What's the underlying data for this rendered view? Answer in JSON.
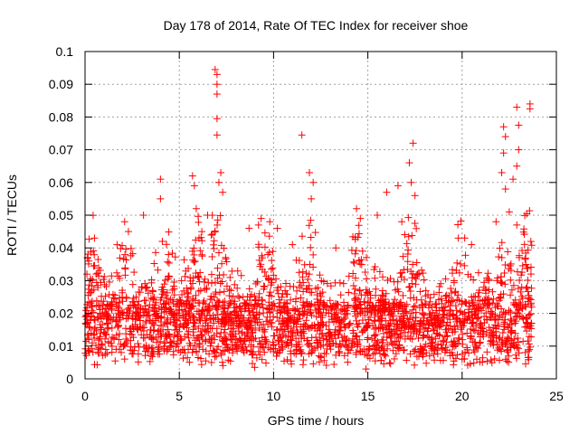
{
  "chart_data": {
    "type": "scatter",
    "title": "Day 178 of 2014, Rate Of TEC Index for receiver shoe",
    "xlabel": "GPS time / hours",
    "ylabel": "ROTI / TECUs",
    "xlim": [
      0,
      25
    ],
    "ylim": [
      0,
      0.1
    ],
    "xticks": [
      "0",
      "5",
      "10",
      "15",
      "20",
      "25"
    ],
    "yticks": [
      "0",
      "0.01",
      "0.02",
      "0.03",
      "0.04",
      "0.05",
      "0.06",
      "0.07",
      "0.08",
      "0.09",
      "0.1"
    ],
    "grid": true,
    "marker": "plus",
    "series": [
      {
        "name": "ROTI",
        "color": "#ff0000",
        "points": [
          [
            0.1,
            0.032
          ],
          [
            0.2,
            0.036
          ],
          [
            0.5,
            0.043
          ],
          [
            1.7,
            0.041
          ],
          [
            2.1,
            0.048
          ],
          [
            2.3,
            0.045
          ],
          [
            3.1,
            0.05
          ],
          [
            4.0,
            0.061
          ],
          [
            4.0,
            0.055
          ],
          [
            4.1,
            0.042
          ],
          [
            5.7,
            0.062
          ],
          [
            5.8,
            0.059
          ],
          [
            5.9,
            0.052
          ],
          [
            6.5,
            0.05
          ],
          [
            6.9,
            0.0945
          ],
          [
            7.0,
            0.093
          ],
          [
            7.0,
            0.09
          ],
          [
            7.0,
            0.087
          ],
          [
            7.0,
            0.0795
          ],
          [
            7.0,
            0.0745
          ],
          [
            7.1,
            0.06
          ],
          [
            7.2,
            0.063
          ],
          [
            7.3,
            0.057
          ],
          [
            8.7,
            0.046
          ],
          [
            9.2,
            0.047
          ],
          [
            9.8,
            0.048
          ],
          [
            10.2,
            0.046
          ],
          [
            11.0,
            0.041
          ],
          [
            11.5,
            0.0745
          ],
          [
            11.9,
            0.063
          ],
          [
            12.1,
            0.06
          ],
          [
            12.0,
            0.055
          ],
          [
            13.3,
            0.04
          ],
          [
            14.4,
            0.052
          ],
          [
            14.6,
            0.049
          ],
          [
            15.5,
            0.05
          ],
          [
            16.0,
            0.057
          ],
          [
            16.6,
            0.059
          ],
          [
            16.8,
            0.048
          ],
          [
            17.2,
            0.066
          ],
          [
            17.4,
            0.072
          ],
          [
            17.3,
            0.06
          ],
          [
            17.5,
            0.056
          ],
          [
            19.8,
            0.043
          ],
          [
            20.5,
            0.041
          ],
          [
            21.8,
            0.048
          ],
          [
            22.2,
            0.077
          ],
          [
            22.3,
            0.074
          ],
          [
            22.2,
            0.069
          ],
          [
            22.1,
            0.063
          ],
          [
            22.3,
            0.058
          ],
          [
            22.5,
            0.051
          ],
          [
            22.7,
            0.061
          ],
          [
            22.9,
            0.083
          ],
          [
            23.0,
            0.0775
          ],
          [
            23.0,
            0.07
          ],
          [
            22.9,
            0.065
          ],
          [
            23.6,
            0.084
          ],
          [
            23.6,
            0.0825
          ],
          [
            22.9,
            0.047
          ],
          [
            14.9,
            0.003
          ],
          [
            9.0,
            0.0035
          ],
          [
            0.2,
            0.0085
          ],
          [
            3.5,
            0.007
          ],
          [
            6.0,
            0.0065
          ],
          [
            12.5,
            0.0068
          ],
          [
            18.5,
            0.0075
          ],
          [
            20.0,
            0.006
          ],
          [
            23.5,
            0.0065
          ]
        ]
      }
    ]
  }
}
